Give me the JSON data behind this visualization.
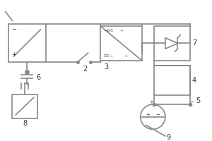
{
  "bg_color": "#ffffff",
  "line_color": "#888888",
  "line_width": 1.2,
  "box_edge_color": "#888888",
  "label_color": "#333333",
  "fig_width": 3.0,
  "fig_height": 2.0,
  "dpi": 100
}
